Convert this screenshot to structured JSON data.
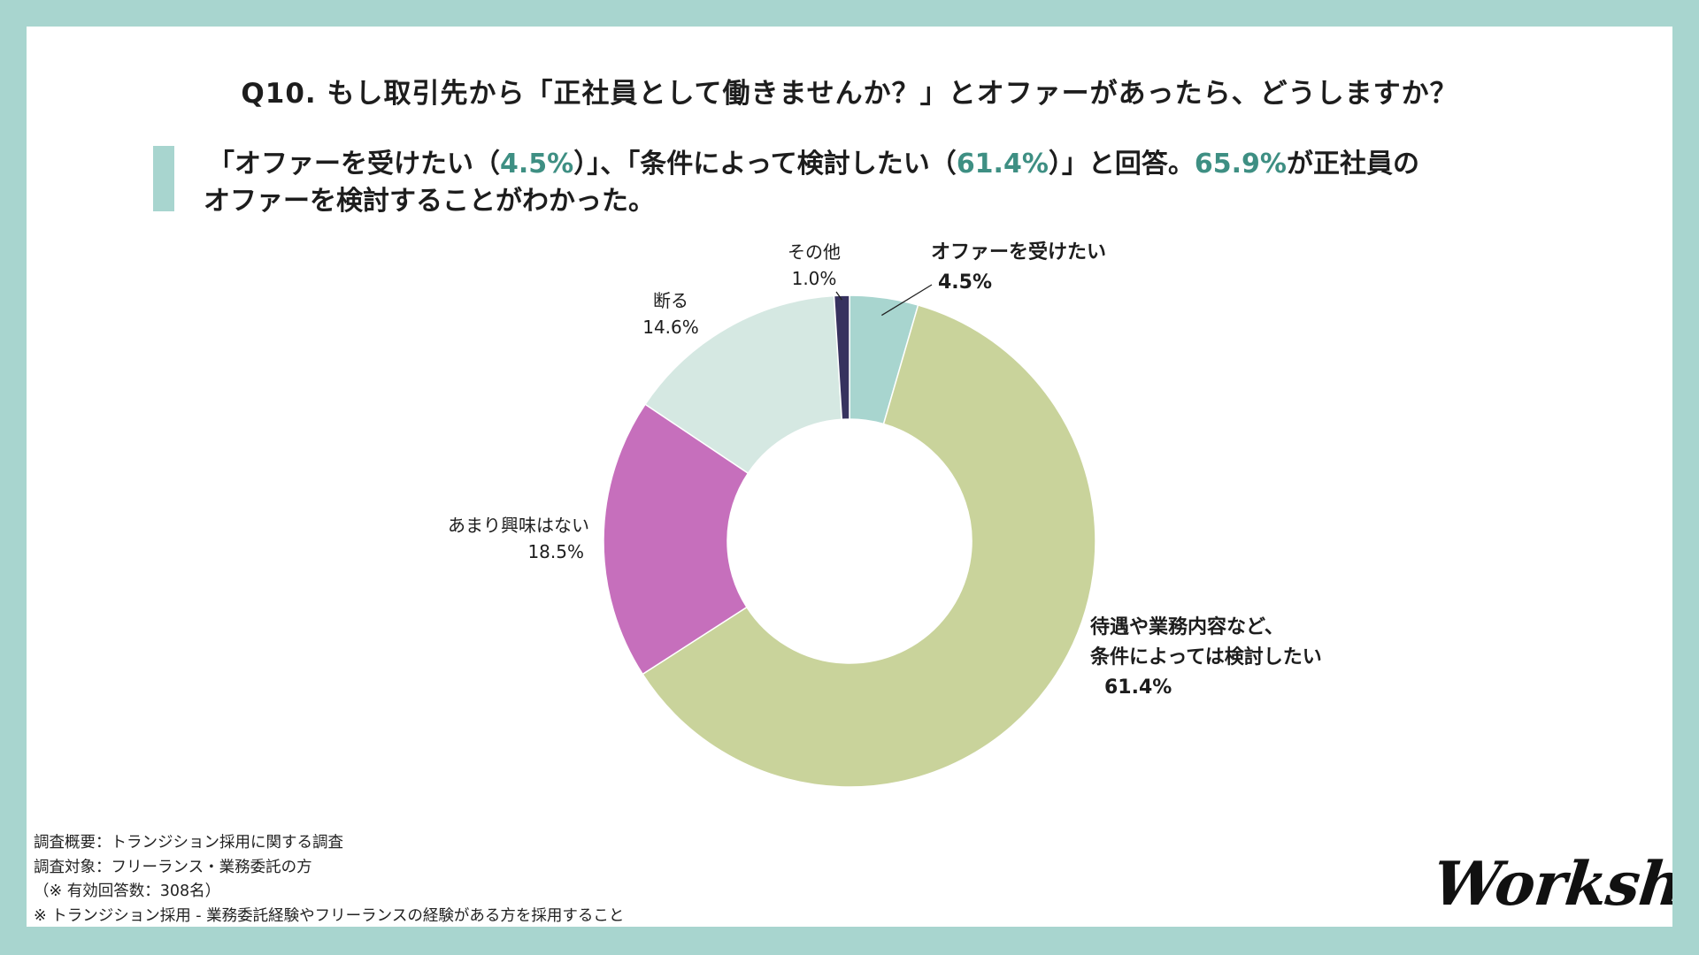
{
  "question": "Q10. もし取引先から「正社員として働きませんか？」とオファーがあったら、どうしますか？",
  "summary": {
    "line1_a": "「オファーを受けたい（",
    "line1_v1": "4.5%",
    "line1_b": "）」、「条件によって検討したい（",
    "line1_v2": "61.4%",
    "line1_c": "）」と回答。",
    "line1_v3": "65.9%",
    "line1_d": "が正社員の",
    "line2": "オファーを検討することがわかった。"
  },
  "chart_data": {
    "type": "pie",
    "donut": true,
    "categories": [
      "オファーを受けたい",
      "待遇や業務内容など、条件によっては検討したい",
      "あまり興味はない",
      "断る",
      "その他"
    ],
    "values": [
      4.5,
      61.4,
      18.5,
      14.6,
      1.0
    ],
    "colors": [
      "#a8d5cf",
      "#c9d39b",
      "#c66fbc",
      "#d5e8e2",
      "#37325f"
    ],
    "labels": [
      {
        "lines": [
          "オファーを受けたい",
          "4.5%"
        ],
        "bold": true
      },
      {
        "lines": [
          "待遇や業務内容など、",
          "条件によっては検討したい",
          "61.4%"
        ],
        "bold": true
      },
      {
        "lines": [
          "あまり興味はない",
          "18.5%"
        ],
        "bold": false
      },
      {
        "lines": [
          "断る",
          "14.6%"
        ],
        "bold": false
      },
      {
        "lines": [
          "その他",
          "1.0%"
        ],
        "bold": false
      }
    ]
  },
  "footer": {
    "line1": "調査概要：トランジション採用に関する調査",
    "line2": "調査対象：フリーランス・業務委託の方",
    "line3": "（※ 有効回答数：308名）",
    "line4": "※ トランジション採用 - 業務委託経験やフリーランスの経験がある方を採用すること"
  },
  "logo": "Workship"
}
